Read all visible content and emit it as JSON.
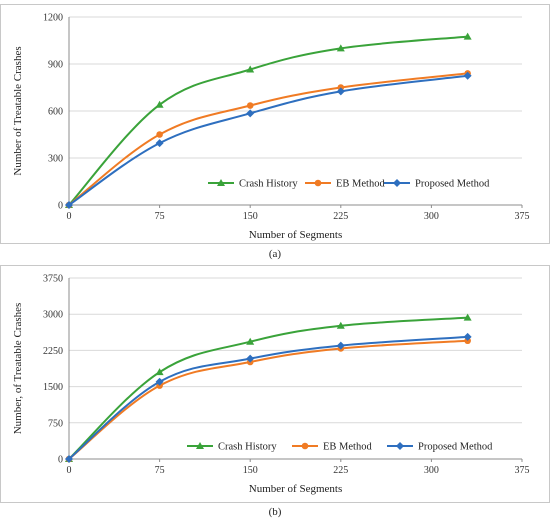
{
  "colors": {
    "crash": "#3aa33a",
    "eb": "#f07b24",
    "proposed": "#2e6fbf",
    "grid": "#d9d9d9",
    "axis": "#8c8c8c"
  },
  "chart_data": [
    {
      "type": "line",
      "caption": "(a)",
      "xlabel": "Number of Segments",
      "ylabel": "Number of Treatable Crashes",
      "xlim": [
        0,
        375
      ],
      "ylim": [
        0,
        1200
      ],
      "xticks": [
        0,
        75,
        150,
        225,
        300,
        375
      ],
      "yticks": [
        0,
        300,
        600,
        900,
        1200
      ],
      "grid": "horizontal",
      "legend_position": "lower-right",
      "x": [
        0,
        75,
        150,
        225,
        330
      ],
      "series": [
        {
          "name": "Crash History",
          "marker": "triangle",
          "color_key": "crash",
          "values": [
            0,
            640,
            865,
            1000,
            1075
          ]
        },
        {
          "name": "EB Method",
          "marker": "circle",
          "color_key": "eb",
          "values": [
            0,
            450,
            635,
            750,
            840
          ]
        },
        {
          "name": "Proposed Method",
          "marker": "diamond",
          "color_key": "proposed",
          "values": [
            0,
            395,
            585,
            725,
            825
          ]
        }
      ]
    },
    {
      "type": "line",
      "caption": "(b)",
      "xlabel": "Number of Segments",
      "ylabel": "Number, of Treatable Crashes",
      "xlim": [
        0,
        375
      ],
      "ylim": [
        0,
        3750
      ],
      "xticks": [
        0,
        75,
        150,
        225,
        300,
        375
      ],
      "yticks": [
        0,
        750,
        1500,
        2250,
        3000,
        3750
      ],
      "grid": "horizontal",
      "legend_position": "bottom",
      "x": [
        0,
        75,
        150,
        225,
        330
      ],
      "series": [
        {
          "name": "Crash History",
          "marker": "triangle",
          "color_key": "crash",
          "values": [
            0,
            1800,
            2430,
            2760,
            2930
          ]
        },
        {
          "name": "EB Method",
          "marker": "circle",
          "color_key": "eb",
          "values": [
            0,
            1520,
            2010,
            2290,
            2450
          ]
        },
        {
          "name": "Proposed Method",
          "marker": "diamond",
          "color_key": "proposed",
          "values": [
            0,
            1600,
            2080,
            2350,
            2530
          ]
        }
      ]
    }
  ]
}
